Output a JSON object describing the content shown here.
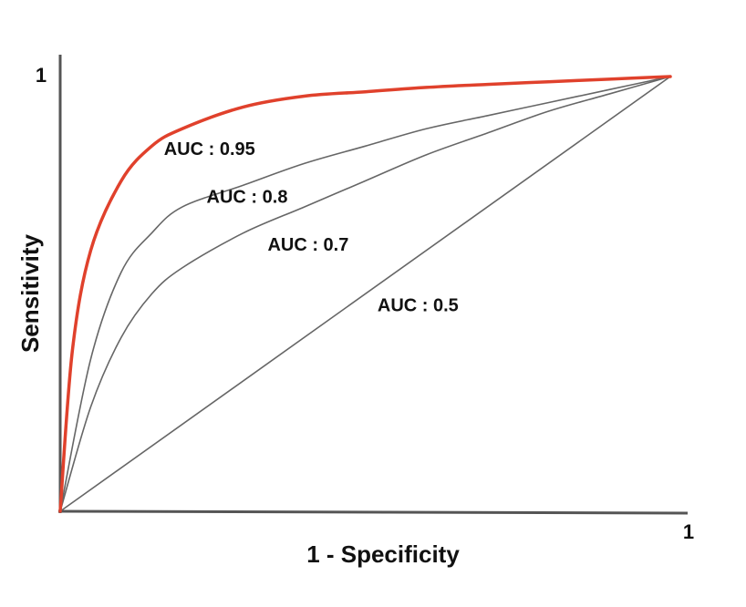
{
  "chart_data": {
    "type": "line",
    "title": "",
    "xlabel": "1 - Specificity",
    "ylabel": "Sensitivity",
    "xlim": [
      0,
      1
    ],
    "ylim": [
      0,
      1
    ],
    "x_tick_labels": [
      "1"
    ],
    "y_tick_labels": [
      "1"
    ],
    "grid": false,
    "legend": "none",
    "series": [
      {
        "name": "AUC : 0.95",
        "color": "#e0412c",
        "x": [
          0,
          0.02,
          0.05,
          0.1,
          0.15,
          0.2,
          0.3,
          0.4,
          0.5,
          0.6,
          0.7,
          0.8,
          0.9,
          1
        ],
        "y": [
          0,
          0.37,
          0.6,
          0.76,
          0.84,
          0.88,
          0.93,
          0.955,
          0.965,
          0.975,
          0.982,
          0.988,
          0.994,
          1
        ]
      },
      {
        "name": "AUC : 0.8",
        "color": "#666666",
        "x": [
          0,
          0.05,
          0.1,
          0.15,
          0.2,
          0.3,
          0.4,
          0.5,
          0.6,
          0.7,
          0.8,
          0.9,
          1
        ],
        "y": [
          0,
          0.35,
          0.55,
          0.64,
          0.7,
          0.75,
          0.8,
          0.84,
          0.88,
          0.91,
          0.94,
          0.97,
          1
        ]
      },
      {
        "name": "AUC : 0.7",
        "color": "#666666",
        "x": [
          0,
          0.05,
          0.1,
          0.15,
          0.2,
          0.3,
          0.4,
          0.5,
          0.6,
          0.7,
          0.8,
          0.9,
          1
        ],
        "y": [
          0,
          0.24,
          0.4,
          0.5,
          0.56,
          0.64,
          0.7,
          0.76,
          0.82,
          0.87,
          0.92,
          0.96,
          1
        ]
      },
      {
        "name": "AUC : 0.5",
        "color": "#666666",
        "x": [
          0,
          1
        ],
        "y": [
          0,
          1
        ]
      }
    ],
    "annotations": [
      {
        "text": "AUC : 0.95",
        "x": 0.17,
        "y": 0.82
      },
      {
        "text": "AUC : 0.8",
        "x": 0.24,
        "y": 0.71
      },
      {
        "text": "AUC : 0.7",
        "x": 0.34,
        "y": 0.6
      },
      {
        "text": "AUC : 0.5",
        "x": 0.52,
        "y": 0.46
      }
    ]
  }
}
